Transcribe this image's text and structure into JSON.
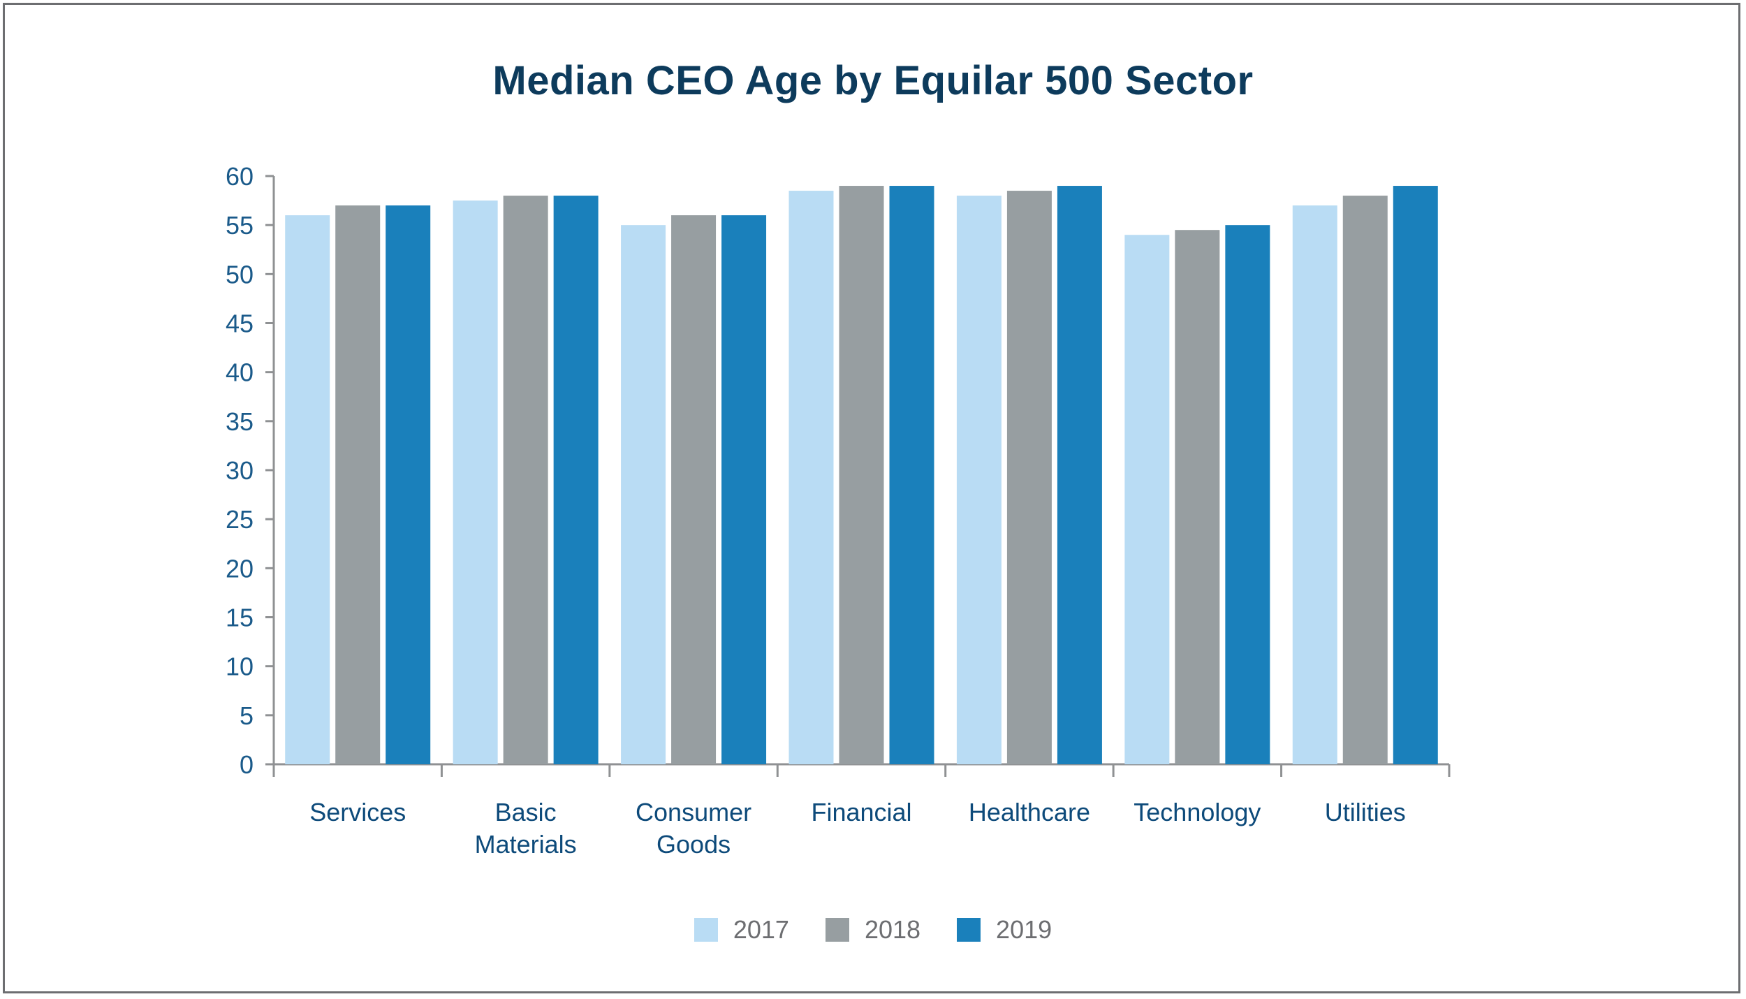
{
  "chart_data": {
    "type": "bar",
    "title": "Median CEO Age by Equilar 500 Sector",
    "xlabel": "",
    "ylabel": "",
    "ylim": [
      0,
      60
    ],
    "yticks": [
      "0",
      "5",
      "10",
      "15",
      "20",
      "25",
      "30",
      "35",
      "40",
      "45",
      "50",
      "55",
      "60"
    ],
    "categories": [
      [
        "Services"
      ],
      [
        "Basic",
        "Materials"
      ],
      [
        "Consumer",
        "Goods"
      ],
      [
        "Financial"
      ],
      [
        "Healthcare"
      ],
      [
        "Technology"
      ],
      [
        "Utilities"
      ]
    ],
    "series": [
      {
        "name": "2017",
        "color": "#b9dcf4",
        "values": [
          56,
          57.5,
          55,
          58.5,
          58,
          54,
          57
        ]
      },
      {
        "name": "2018",
        "color": "#979ea1",
        "values": [
          57,
          58,
          56,
          59,
          58.5,
          54.5,
          58
        ]
      },
      {
        "name": "2019",
        "color": "#1a80bb",
        "values": [
          57,
          58,
          56,
          59,
          59,
          55,
          59
        ]
      }
    ],
    "grid": false,
    "legend_position": "bottom-center"
  }
}
